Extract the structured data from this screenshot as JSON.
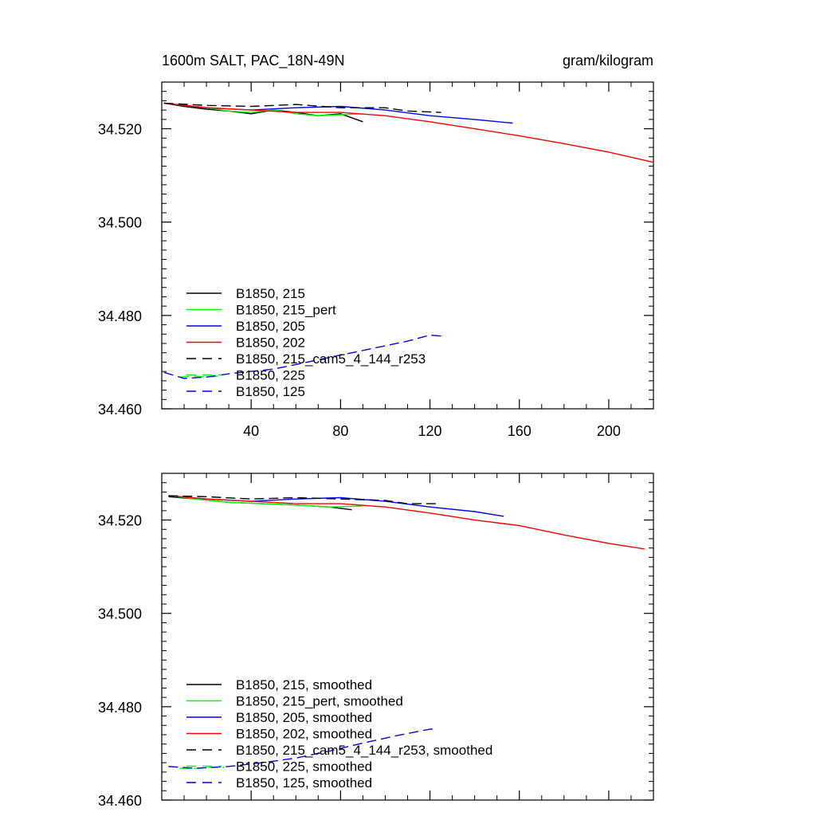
{
  "header": {
    "title": "1600m SALT, PAC_18N-49N",
    "units": "gram/kilogram"
  },
  "colors": {
    "black": "#000000",
    "green": "#00ff00",
    "blue": "#0000ff",
    "red": "#ff0000"
  },
  "chart_data": [
    {
      "type": "line",
      "title": "1600m SALT, PAC_18N-49N",
      "units": "gram/kilogram",
      "xlim": [
        0,
        220
      ],
      "ylim": [
        34.46,
        34.53
      ],
      "xticks": [
        40,
        80,
        120,
        160,
        200
      ],
      "xtick_labels": [
        "40",
        "80",
        "120",
        "160",
        "200"
      ],
      "yticks": [
        34.46,
        34.48,
        34.5,
        34.52
      ],
      "ytick_labels": [
        "34.460",
        "34.480",
        "34.500",
        "34.520"
      ],
      "grid": false,
      "legend_position": "bottom-left",
      "series": [
        {
          "name": "B1850, 215",
          "color": "#000000",
          "dash": "solid",
          "x": [
            1,
            10,
            20,
            30,
            40,
            50,
            60,
            70,
            80,
            90
          ],
          "y": [
            34.5255,
            34.5248,
            34.5242,
            34.5238,
            34.5232,
            34.524,
            34.5235,
            34.5228,
            34.5232,
            34.5215
          ]
        },
        {
          "name": "B1850, 215_pert",
          "color": "#00ff00",
          "dash": "solid",
          "x": [
            1,
            10,
            20,
            30,
            40,
            50,
            60,
            70,
            80,
            90
          ],
          "y": [
            34.5255,
            34.525,
            34.5245,
            34.5238,
            34.5235,
            34.524,
            34.5232,
            34.5228,
            34.523,
            34.5232
          ]
        },
        {
          "name": "B1850, 205",
          "color": "#0000ff",
          "dash": "solid",
          "x": [
            1,
            20,
            40,
            60,
            80,
            100,
            120,
            140,
            157
          ],
          "y": [
            34.5255,
            34.5245,
            34.524,
            34.5245,
            34.5248,
            34.524,
            34.5228,
            34.522,
            34.5212
          ]
        },
        {
          "name": "B1850, 202",
          "color": "#ff0000",
          "dash": "solid",
          "x": [
            1,
            20,
            40,
            60,
            80,
            100,
            120,
            140,
            160,
            180,
            200,
            220
          ],
          "y": [
            34.5255,
            34.5245,
            34.524,
            34.5235,
            34.5235,
            34.5228,
            34.5215,
            34.52,
            34.5185,
            34.5168,
            34.515,
            34.5128
          ]
        },
        {
          "name": "B1850, 215_cam5_4_144_r253",
          "color": "#000000",
          "dash": "dashed",
          "x": [
            1,
            20,
            40,
            60,
            80,
            100,
            110,
            125
          ],
          "y": [
            34.5255,
            34.525,
            34.5248,
            34.5252,
            34.5245,
            34.5245,
            34.5238,
            34.5235
          ]
        },
        {
          "name": "B1850, 225",
          "color": "#00ff00",
          "dash": "dashed",
          "x": [
            8,
            15,
            20,
            25
          ],
          "y": [
            34.4668,
            34.467,
            34.4668,
            34.467
          ]
        },
        {
          "name": "B1850, 125",
          "color": "#0000ff",
          "dash": "dashed",
          "x": [
            1,
            10,
            20,
            30,
            40,
            50,
            60,
            70,
            80,
            90,
            100,
            110,
            120,
            127
          ],
          "y": [
            34.4678,
            34.4665,
            34.4668,
            34.4675,
            34.468,
            34.4685,
            34.4695,
            34.4705,
            34.4715,
            34.4725,
            34.4735,
            34.4745,
            34.4758,
            34.4755
          ]
        }
      ]
    },
    {
      "type": "line",
      "xlim": [
        0,
        220
      ],
      "ylim": [
        34.46,
        34.53
      ],
      "xticks": [
        40,
        80,
        120,
        160,
        200
      ],
      "xtick_labels": [],
      "yticks": [
        34.46,
        34.48,
        34.5,
        34.52
      ],
      "ytick_labels": [
        "34.460",
        "34.480",
        "34.500",
        "34.520"
      ],
      "grid": false,
      "legend_position": "bottom-left",
      "series": [
        {
          "name": "B1850, 215, smoothed",
          "color": "#000000",
          "dash": "solid",
          "x": [
            3,
            15,
            30,
            45,
            60,
            75,
            85
          ],
          "y": [
            34.525,
            34.5245,
            34.5238,
            34.5235,
            34.5232,
            34.5228,
            34.5222
          ]
        },
        {
          "name": "B1850, 215_pert, smoothed",
          "color": "#00ff00",
          "dash": "solid",
          "x": [
            3,
            15,
            30,
            45,
            60,
            75,
            90
          ],
          "y": [
            34.5252,
            34.5245,
            34.5238,
            34.5235,
            34.5232,
            34.5228,
            34.523
          ]
        },
        {
          "name": "B1850, 205, smoothed",
          "color": "#0000ff",
          "dash": "solid",
          "x": [
            3,
            20,
            40,
            60,
            80,
            100,
            120,
            140,
            153
          ],
          "y": [
            34.5252,
            34.5245,
            34.524,
            34.5245,
            34.5248,
            34.524,
            34.5228,
            34.5218,
            34.5208
          ]
        },
        {
          "name": "B1850, 202, smoothed",
          "color": "#ff0000",
          "dash": "solid",
          "x": [
            3,
            20,
            40,
            60,
            80,
            100,
            120,
            140,
            160,
            180,
            200,
            216
          ],
          "y": [
            34.5252,
            34.5245,
            34.524,
            34.5235,
            34.5235,
            34.5228,
            34.5215,
            34.52,
            34.5188,
            34.5168,
            34.515,
            34.5138
          ]
        },
        {
          "name": "B1850, 215_cam5_4_144_r253, smoothed",
          "color": "#000000",
          "dash": "dashed",
          "x": [
            3,
            20,
            40,
            60,
            80,
            100,
            110,
            123
          ],
          "y": [
            34.5252,
            34.525,
            34.5245,
            34.5248,
            34.5245,
            34.5242,
            34.5235,
            34.5235
          ]
        },
        {
          "name": "B1850, 225, smoothed",
          "color": "#00ff00",
          "dash": "dashed",
          "x": [
            8,
            15,
            22,
            28
          ],
          "y": [
            34.4668,
            34.4668,
            34.467,
            34.467
          ]
        },
        {
          "name": "B1850, 125, smoothed",
          "color": "#0000ff",
          "dash": "dashed",
          "x": [
            3,
            15,
            30,
            45,
            60,
            75,
            90,
            105,
            120,
            123
          ],
          "y": [
            34.4672,
            34.4668,
            34.4672,
            34.468,
            34.469,
            34.4705,
            34.4722,
            34.4738,
            34.4752,
            34.4752
          ]
        }
      ]
    }
  ]
}
